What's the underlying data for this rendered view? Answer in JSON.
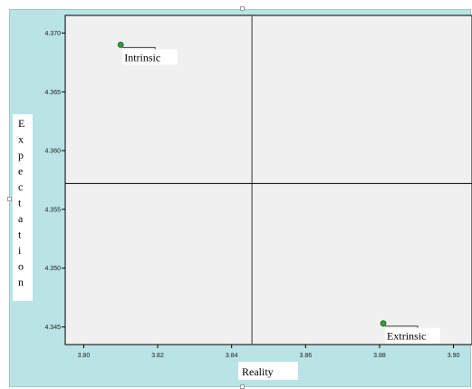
{
  "chart_data": {
    "type": "scatter",
    "title": "",
    "xlabel": "Reality",
    "ylabel": "Expectation",
    "xlim": [
      3.795,
      3.905
    ],
    "ylim": [
      4.3435,
      4.3715
    ],
    "xticks": [
      3.8,
      3.82,
      3.84,
      3.86,
      3.88,
      3.9
    ],
    "xtick_labels": [
      "3.80",
      "3.82",
      "3.84",
      "3.86",
      "3.88",
      "3.90"
    ],
    "yticks": [
      4.345,
      4.35,
      4.355,
      4.36,
      4.365,
      4.37
    ],
    "ytick_labels": [
      "4.345",
      "4.350",
      "4.355",
      "4.360",
      "4.365",
      "4.370"
    ],
    "reference_lines": {
      "x": 3.8455,
      "y": 4.3572
    },
    "grid": false,
    "legend": "none",
    "points": [
      {
        "label": "Intrinsic",
        "x": 3.81,
        "y": 4.369
      },
      {
        "label": "Extrinsic",
        "x": 3.881,
        "y": 4.3453
      }
    ],
    "colors": {
      "frame_background": "#b9e3e5",
      "plot_background": "#f0f0f0",
      "marker_fill": "#3a9a3a",
      "marker_edge": "#1f5f1f",
      "reference_line": "#000000",
      "label_box": "#ffffff"
    }
  }
}
